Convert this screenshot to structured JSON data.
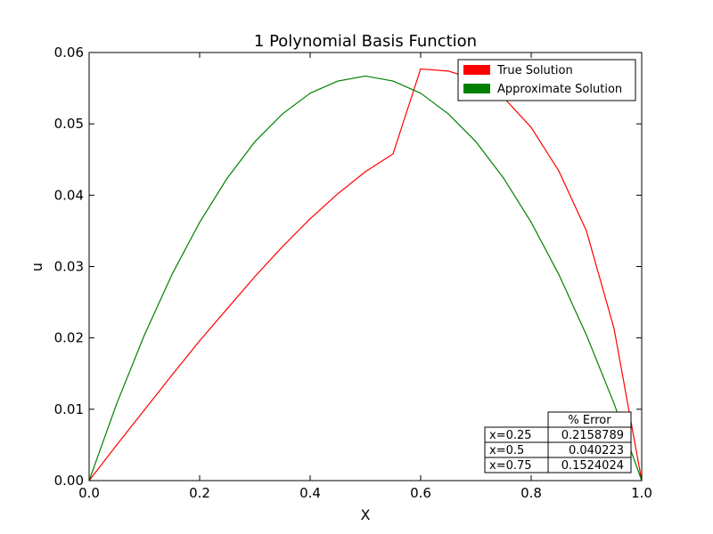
{
  "chart_data": {
    "type": "line",
    "title": "1 Polynomial Basis Function",
    "xlabel": "X",
    "ylabel": "u",
    "xlim": [
      0.0,
      1.0
    ],
    "ylim": [
      0.0,
      0.06
    ],
    "xticks": [
      "0.0",
      "0.2",
      "0.4",
      "0.6",
      "0.8",
      "1.0"
    ],
    "yticks": [
      "0.00",
      "0.01",
      "0.02",
      "0.03",
      "0.04",
      "0.05",
      "0.06"
    ],
    "grid": false,
    "legend_position": "top-right",
    "series": [
      {
        "name": "True Solution",
        "color": "#ff0000",
        "x": [
          0.0,
          0.05,
          0.1,
          0.15,
          0.2,
          0.25,
          0.3,
          0.35,
          0.4,
          0.45,
          0.5,
          0.55,
          0.6,
          0.65,
          0.7,
          0.75,
          0.8,
          0.85,
          0.9,
          0.95,
          1.0
        ],
        "y": [
          0.0,
          0.005,
          0.0099,
          0.0148,
          0.0196,
          0.0241,
          0.0286,
          0.0328,
          0.0367,
          0.0402,
          0.0433,
          0.0458,
          0.0577,
          0.0574,
          0.0562,
          0.0537,
          0.0495,
          0.0434,
          0.035,
          0.0213,
          0.0
        ]
      },
      {
        "name": "Approximate Solution",
        "color": "#008000",
        "x": [
          0.0,
          0.05,
          0.1,
          0.15,
          0.2,
          0.25,
          0.3,
          0.35,
          0.4,
          0.45,
          0.5,
          0.55,
          0.6,
          0.65,
          0.7,
          0.75,
          0.8,
          0.85,
          0.9,
          0.95,
          1.0
        ],
        "y": [
          0.0,
          0.0108,
          0.0204,
          0.0289,
          0.0362,
          0.0424,
          0.0475,
          0.0514,
          0.0543,
          0.056,
          0.0567,
          0.056,
          0.0543,
          0.0514,
          0.0475,
          0.0424,
          0.0362,
          0.0289,
          0.0204,
          0.0108,
          0.0
        ]
      }
    ],
    "error_table": {
      "header": "% Error",
      "rows": [
        {
          "label": "x=0.25",
          "value": "0.2158789"
        },
        {
          "label": "x=0.5",
          "value": "0.040223"
        },
        {
          "label": "x=0.75",
          "value": "0.1524024"
        }
      ]
    }
  }
}
